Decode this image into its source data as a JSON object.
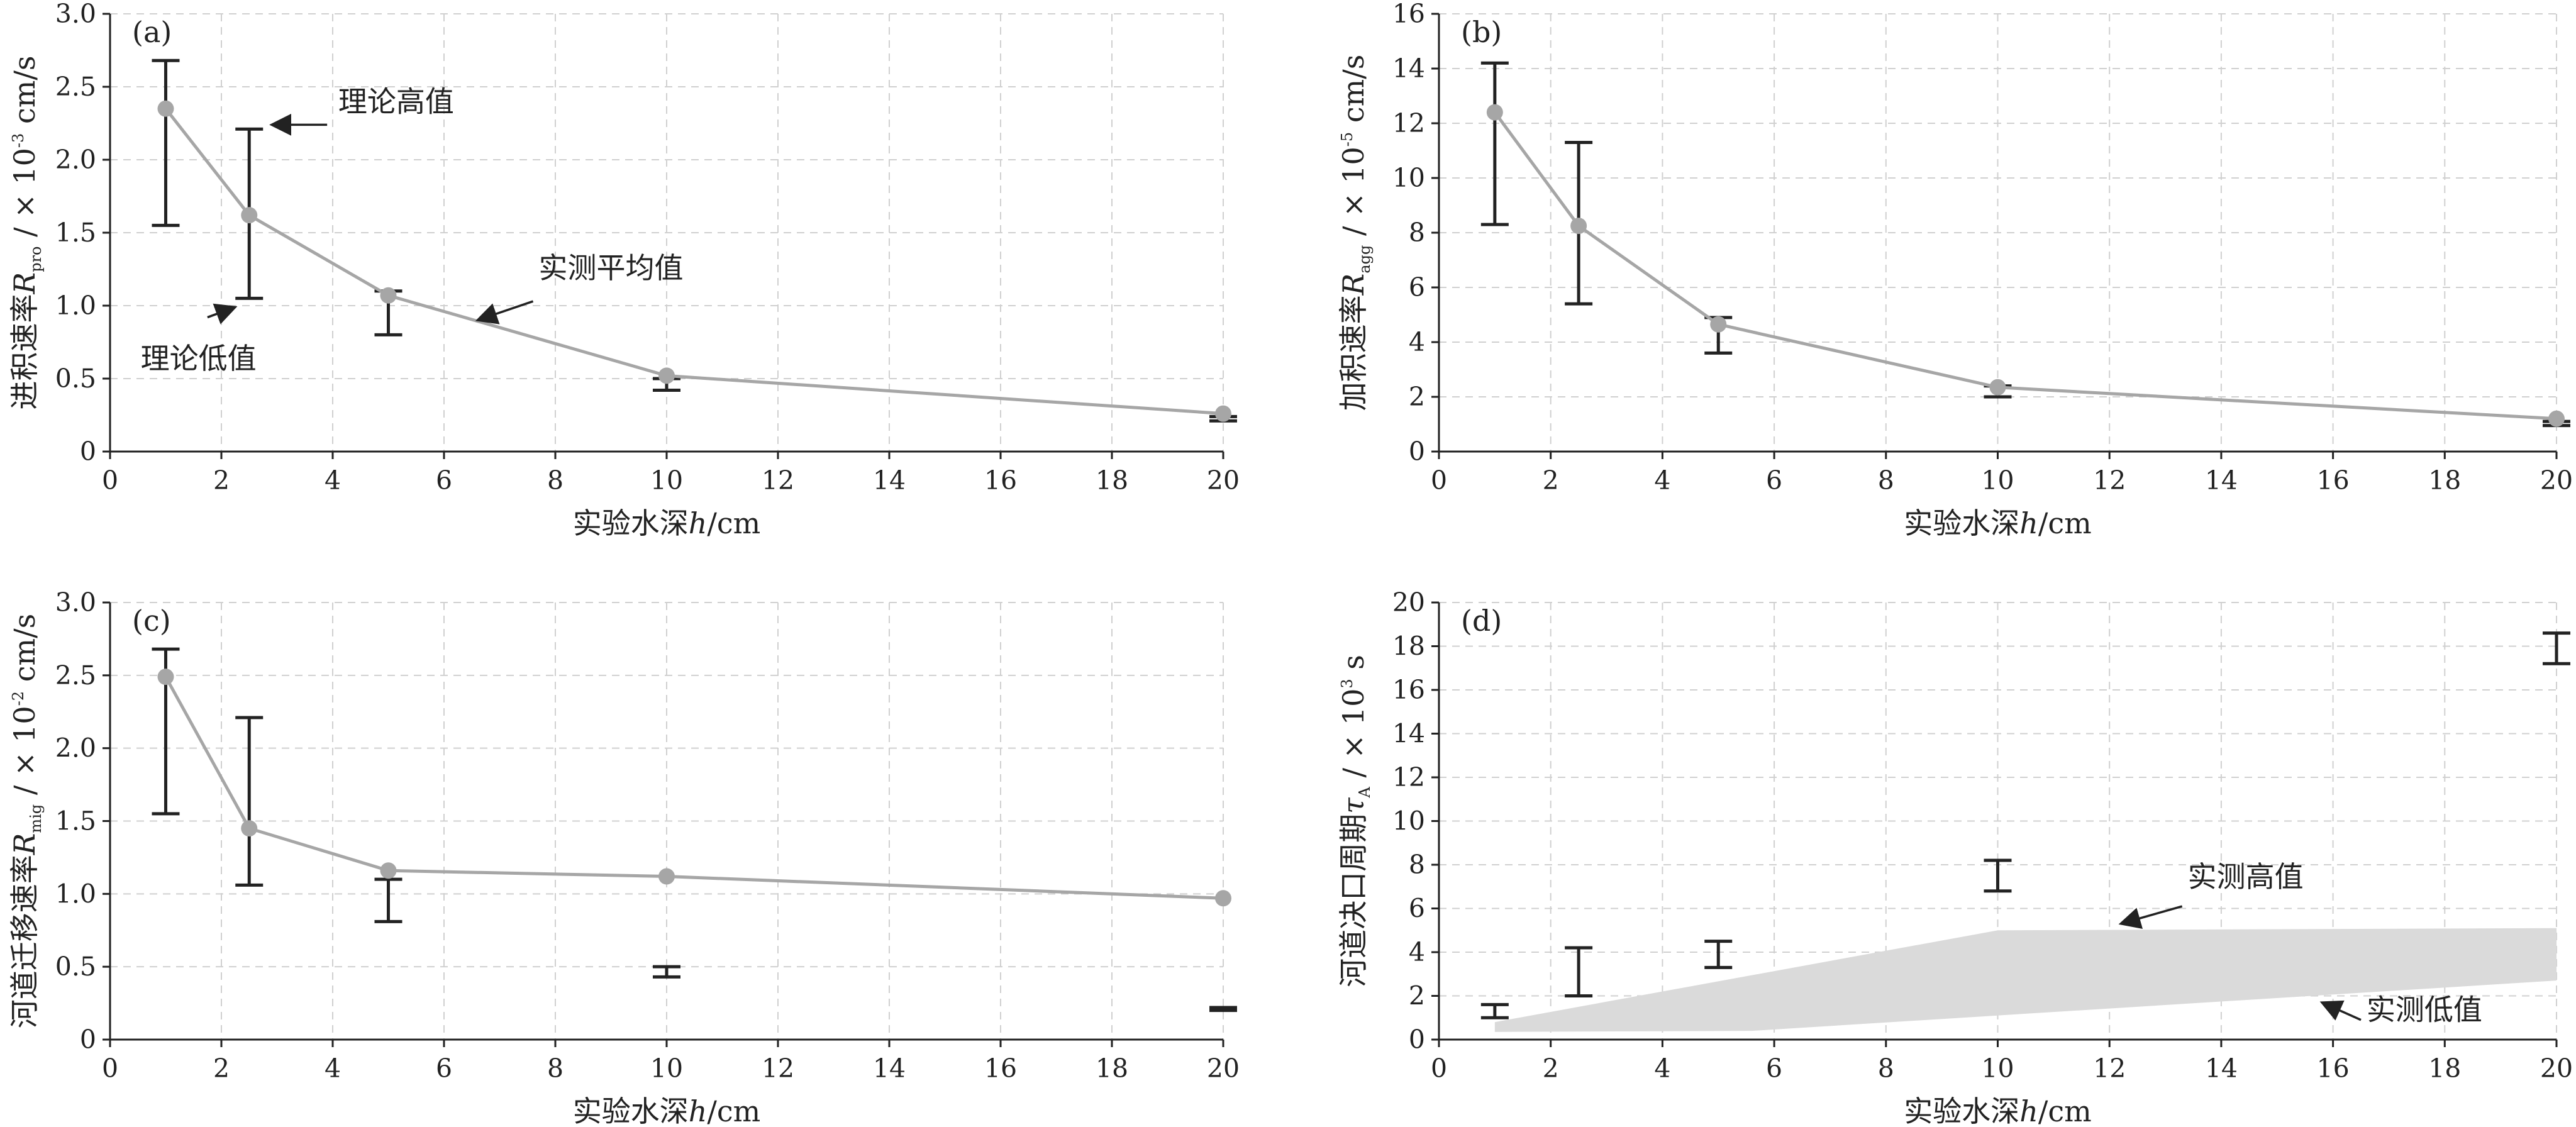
{
  "colors": {
    "axis": "#222222",
    "grid": "#d0d0d0",
    "mean_line": "#a6a6a6",
    "mean_marker": "#a6a6a6",
    "error_bar": "#222222",
    "band_fill": "#dadada"
  },
  "chart_data": [
    {
      "id": "a",
      "type": "line",
      "panel_label": "(a)",
      "xlabel": {
        "main": "实验水深",
        "var": "h",
        "unit": "/cm"
      },
      "ylabel": {
        "main": "进积速率",
        "var": "R",
        "sub": "pro",
        "unit_prefix": " / × 10",
        "exp": "-3",
        "unit": " cm/s"
      },
      "xlim": [
        0,
        20
      ],
      "ylim": [
        0,
        3.0
      ],
      "xticks": [
        "0",
        "2",
        "4",
        "6",
        "8",
        "10",
        "12",
        "14",
        "16",
        "18",
        "20"
      ],
      "xtick_values": [
        0,
        2,
        4,
        6,
        8,
        10,
        12,
        14,
        16,
        18,
        20
      ],
      "yticks": [
        "0",
        "0.5",
        "1.0",
        "1.5",
        "2.0",
        "2.5",
        "3.0"
      ],
      "ytick_values": [
        0,
        0.5,
        1.0,
        1.5,
        2.0,
        2.5,
        3.0
      ],
      "grid": true,
      "mean": {
        "x": [
          1,
          2.5,
          5,
          10,
          20
        ],
        "y": [
          2.35,
          1.62,
          1.07,
          0.52,
          0.26
        ]
      },
      "ranges": {
        "x": [
          1,
          2.5,
          5,
          10,
          20
        ],
        "low": [
          1.55,
          1.05,
          0.8,
          0.42,
          0.21
        ],
        "high": [
          2.68,
          2.21,
          1.1,
          0.5,
          0.24
        ]
      },
      "annotations": [
        {
          "text": "理论高值",
          "x": 4.1,
          "y": 2.33,
          "anchor": "start",
          "arrow_to": [
            2.9,
            2.24
          ],
          "arrow_from": [
            3.9,
            2.24
          ]
        },
        {
          "text": "实测平均值",
          "x": 7.7,
          "y": 1.19,
          "anchor": "start",
          "arrow_to": [
            6.6,
            0.9
          ],
          "arrow_from": [
            7.6,
            1.03
          ]
        },
        {
          "text": "理论低值",
          "x": 0.55,
          "y": 0.57,
          "anchor": "start",
          "arrow_to": [
            2.25,
            0.99
          ],
          "arrow_from": [
            1.75,
            0.92
          ]
        }
      ]
    },
    {
      "id": "b",
      "type": "line",
      "panel_label": "(b)",
      "xlabel": {
        "main": "实验水深",
        "var": "h",
        "unit": "/cm"
      },
      "ylabel": {
        "main": "加积速率",
        "var": "R",
        "sub": "agg",
        "unit_prefix": " / × 10",
        "exp": "-5",
        "unit": " cm/s"
      },
      "xlim": [
        0,
        20
      ],
      "ylim": [
        0,
        16
      ],
      "xticks": [
        "0",
        "2",
        "4",
        "6",
        "8",
        "10",
        "12",
        "14",
        "16",
        "18",
        "20"
      ],
      "xtick_values": [
        0,
        2,
        4,
        6,
        8,
        10,
        12,
        14,
        16,
        18,
        20
      ],
      "yticks": [
        "0",
        "2",
        "4",
        "6",
        "8",
        "10",
        "12",
        "14",
        "16"
      ],
      "ytick_values": [
        0,
        2,
        4,
        6,
        8,
        10,
        12,
        14,
        16
      ],
      "grid": true,
      "mean": {
        "x": [
          1,
          2.5,
          5,
          10,
          20
        ],
        "y": [
          12.4,
          8.25,
          4.65,
          2.35,
          1.2
        ]
      },
      "ranges": {
        "x": [
          1,
          2.5,
          5,
          10,
          20
        ],
        "low": [
          8.3,
          5.4,
          3.6,
          2.0,
          0.95
        ],
        "high": [
          14.2,
          11.3,
          4.9,
          2.4,
          1.1
        ]
      },
      "annotations": []
    },
    {
      "id": "c",
      "type": "line",
      "panel_label": "(c)",
      "xlabel": {
        "main": "实验水深",
        "var": "h",
        "unit": "/cm"
      },
      "ylabel": {
        "main": "河道迁移速率",
        "var": "R",
        "sub": "mig",
        "unit_prefix": " / × 10",
        "exp": "-2",
        "unit": " cm/s"
      },
      "xlim": [
        0,
        20
      ],
      "ylim": [
        0,
        3.0
      ],
      "xticks": [
        "0",
        "2",
        "4",
        "6",
        "8",
        "10",
        "12",
        "14",
        "16",
        "18",
        "20"
      ],
      "xtick_values": [
        0,
        2,
        4,
        6,
        8,
        10,
        12,
        14,
        16,
        18,
        20
      ],
      "yticks": [
        "0",
        "0.5",
        "1.0",
        "1.5",
        "2.0",
        "2.5",
        "3.0"
      ],
      "ytick_values": [
        0,
        0.5,
        1.0,
        1.5,
        2.0,
        2.5,
        3.0
      ],
      "grid": true,
      "mean": {
        "x": [
          1,
          2.5,
          5,
          10,
          20
        ],
        "y": [
          2.49,
          1.45,
          1.16,
          1.12,
          0.97
        ]
      },
      "ranges": {
        "x": [
          1,
          2.5,
          5,
          10,
          20
        ],
        "low": [
          1.55,
          1.06,
          0.81,
          0.43,
          0.2
        ],
        "high": [
          2.68,
          2.21,
          1.1,
          0.5,
          0.22
        ]
      },
      "annotations": []
    },
    {
      "id": "d",
      "type": "area",
      "panel_label": "(d)",
      "xlabel": {
        "main": "实验水深",
        "var": "h",
        "unit": "/cm"
      },
      "ylabel": {
        "main": "河道决口周期",
        "var": "τ",
        "sub": "A",
        "unit_prefix": " / × 10",
        "exp": "3",
        "unit": " s"
      },
      "xlim": [
        0,
        20
      ],
      "ylim": [
        0,
        20
      ],
      "xticks": [
        "0",
        "2",
        "4",
        "6",
        "8",
        "10",
        "12",
        "14",
        "16",
        "18",
        "20"
      ],
      "xtick_values": [
        0,
        2,
        4,
        6,
        8,
        10,
        12,
        14,
        16,
        18,
        20
      ],
      "yticks": [
        "0",
        "2",
        "4",
        "6",
        "8",
        "10",
        "12",
        "14",
        "16",
        "18",
        "20"
      ],
      "ytick_values": [
        0,
        2,
        4,
        6,
        8,
        10,
        12,
        14,
        16,
        18,
        20
      ],
      "grid": true,
      "band": {
        "x_upper": [
          1,
          10,
          20
        ],
        "upper": [
          0.8,
          5.0,
          5.1
        ],
        "x_lower": [
          1,
          5.6,
          20
        ],
        "lower": [
          0.35,
          0.4,
          2.7
        ]
      },
      "ranges": {
        "x": [
          1,
          2.5,
          5,
          10,
          20
        ],
        "low": [
          1.0,
          2.0,
          3.3,
          6.8,
          17.2
        ],
        "high": [
          1.6,
          4.2,
          4.5,
          8.2,
          18.6
        ]
      },
      "annotations": [
        {
          "text": "实测高值",
          "x": 13.4,
          "y": 7.0,
          "anchor": "start",
          "arrow_to": [
            12.2,
            5.3
          ],
          "arrow_from": [
            13.3,
            6.1
          ]
        },
        {
          "text": "实测低值",
          "x": 16.6,
          "y": 0.9,
          "anchor": "start",
          "arrow_to": [
            15.8,
            1.7
          ],
          "arrow_from": [
            16.5,
            0.9
          ]
        }
      ]
    }
  ]
}
